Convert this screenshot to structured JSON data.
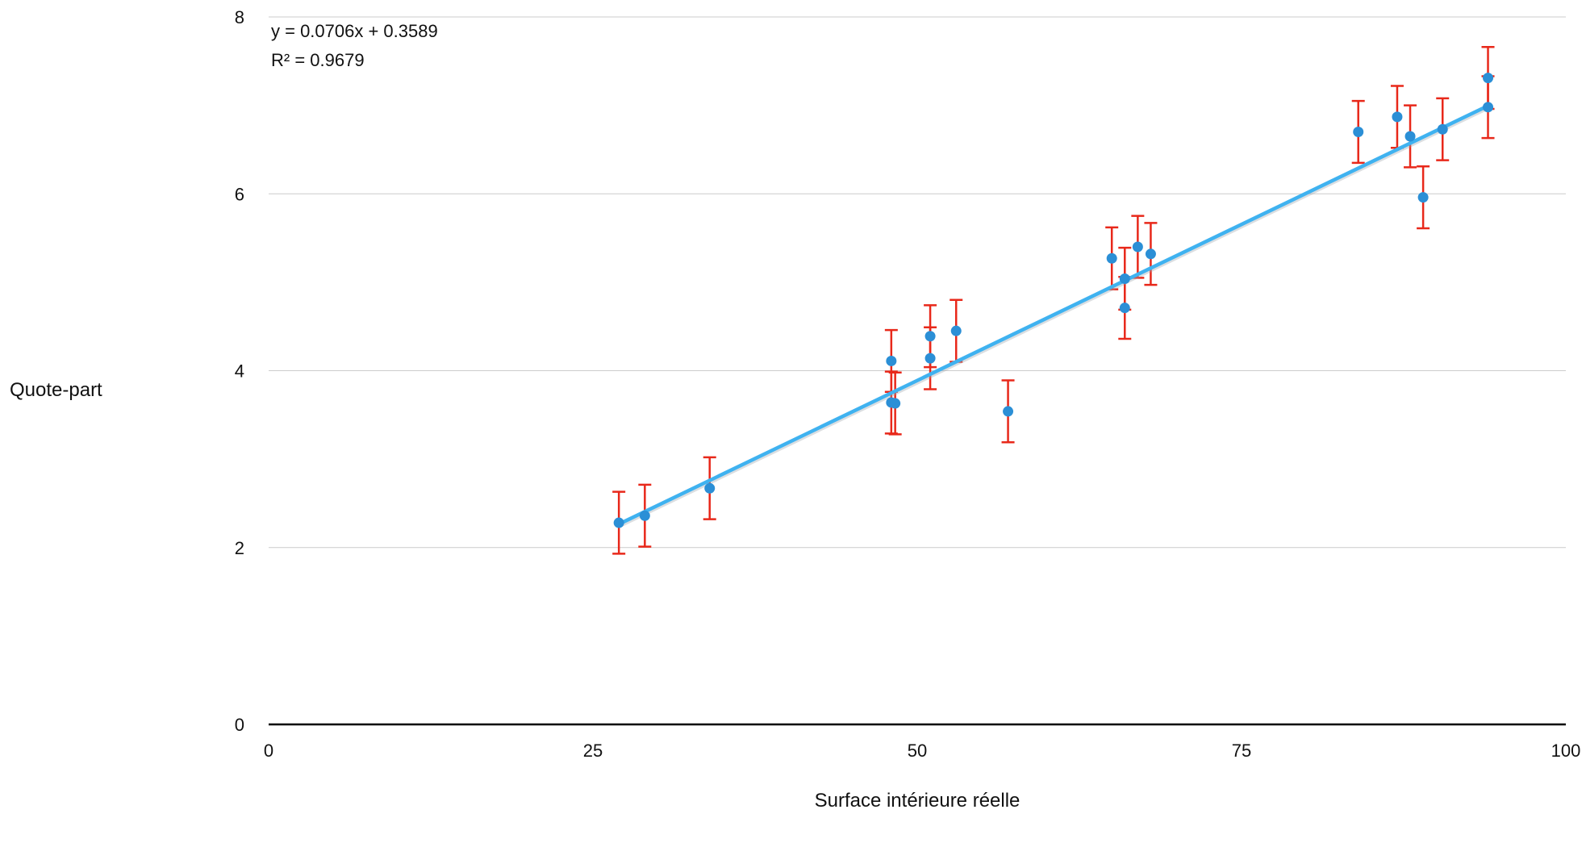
{
  "chart_data": {
    "type": "scatter",
    "title": "",
    "xlabel": "Surface intérieure réelle",
    "ylabel": "Quote-part",
    "xlim": [
      0,
      100
    ],
    "ylim": [
      0,
      8
    ],
    "x_ticks": [
      "0",
      "25",
      "50",
      "75",
      "100"
    ],
    "y_ticks": [
      "0",
      "2",
      "4",
      "6",
      "8"
    ],
    "grid": "horizontal",
    "legend": "none",
    "colors": {
      "points": "#2b8fd6",
      "trendline": "#3fb2f0",
      "error_bars": "#e8281a",
      "grid": "#cccccc",
      "axis": "#000000"
    },
    "series": [
      {
        "points": [
          {
            "x": 27,
            "y": 2.28
          },
          {
            "x": 29,
            "y": 2.36
          },
          {
            "x": 34,
            "y": 2.67
          },
          {
            "x": 48,
            "y": 4.11
          },
          {
            "x": 48,
            "y": 3.64
          },
          {
            "x": 48.3,
            "y": 3.63
          },
          {
            "x": 51,
            "y": 4.39
          },
          {
            "x": 51,
            "y": 4.14
          },
          {
            "x": 53,
            "y": 4.45
          },
          {
            "x": 57,
            "y": 3.54
          },
          {
            "x": 65,
            "y": 5.27
          },
          {
            "x": 66,
            "y": 5.04
          },
          {
            "x": 66,
            "y": 4.71
          },
          {
            "x": 67,
            "y": 5.4
          },
          {
            "x": 68,
            "y": 5.32
          },
          {
            "x": 84,
            "y": 6.7
          },
          {
            "x": 87,
            "y": 6.87
          },
          {
            "x": 88,
            "y": 6.65
          },
          {
            "x": 89,
            "y": 5.96
          },
          {
            "x": 90.5,
            "y": 6.73
          },
          {
            "x": 94,
            "y": 7.31
          },
          {
            "x": 94,
            "y": 6.98
          }
        ],
        "error": 0.35,
        "trendline": {
          "type": "linear",
          "slope": 0.0706,
          "intercept": 0.3589,
          "equation": "y = 0.0706x + 0.3589",
          "r_squared": "R² = 0.9679"
        }
      }
    ]
  }
}
